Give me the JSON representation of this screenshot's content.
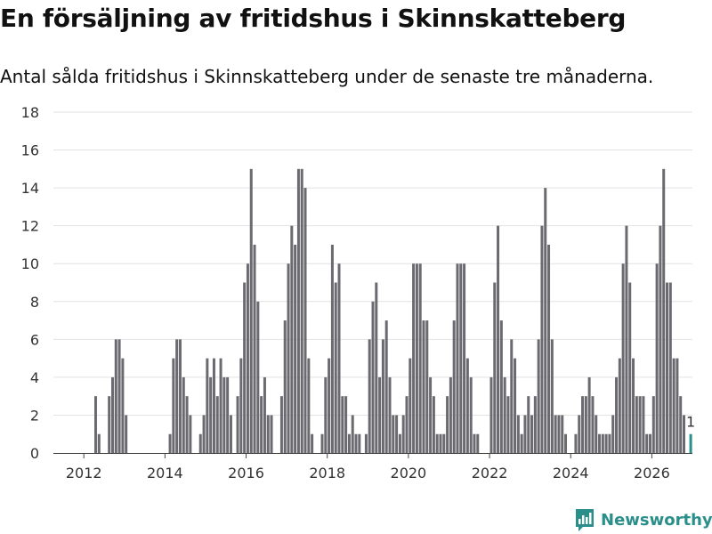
{
  "title": "En försäljning av fritidshus i Skinnskatteberg",
  "subtitle": "Antal sålda fritidshus i Skinnskatteberg under de senaste tre månaderna.",
  "brand": {
    "name": "Newsworthy",
    "icon": "newsworthy-logo-icon",
    "color": "#2a8f8a"
  },
  "chart_data": {
    "type": "bar",
    "title": "En försäljning av fritidshus i Skinnskatteberg",
    "xlabel": "",
    "ylabel": "",
    "ylim": [
      0,
      18
    ],
    "yticks": [
      0,
      2,
      4,
      6,
      8,
      10,
      12,
      14,
      16,
      18
    ],
    "xlim": [
      2011.25,
      2027.0
    ],
    "xticks": [
      2012,
      2014,
      2016,
      2018,
      2020,
      2022,
      2024,
      2026
    ],
    "x_tick_labels": [
      "2012",
      "2014",
      "2016",
      "2018",
      "2020",
      "2022",
      "2024",
      "2026"
    ],
    "grid": true,
    "bar_color": "#6b6a70",
    "highlight_color": "#2a8f8a",
    "start": {
      "year": 2011,
      "month": 1
    },
    "values": [
      0,
      0,
      0,
      0,
      0,
      0,
      0,
      0,
      0,
      0,
      0,
      0,
      0,
      0,
      0,
      3,
      1,
      0,
      0,
      3,
      4,
      6,
      6,
      5,
      2,
      0,
      0,
      0,
      0,
      0,
      0,
      0,
      0,
      0,
      0,
      0,
      0,
      1,
      5,
      6,
      6,
      4,
      3,
      2,
      0,
      0,
      1,
      2,
      5,
      4,
      5,
      3,
      5,
      4,
      4,
      2,
      0,
      3,
      5,
      9,
      10,
      15,
      11,
      8,
      3,
      4,
      2,
      2,
      0,
      0,
      3,
      7,
      10,
      12,
      11,
      15,
      15,
      14,
      5,
      1,
      0,
      0,
      1,
      4,
      5,
      11,
      9,
      10,
      3,
      3,
      1,
      2,
      1,
      1,
      0,
      1,
      6,
      8,
      9,
      4,
      6,
      7,
      4,
      2,
      2,
      1,
      2,
      3,
      5,
      10,
      10,
      10,
      7,
      7,
      4,
      3,
      1,
      1,
      1,
      3,
      4,
      7,
      10,
      10,
      10,
      5,
      4,
      1,
      1,
      0,
      0,
      0,
      4,
      9,
      12,
      7,
      4,
      3,
      6,
      5,
      2,
      1,
      2,
      3,
      2,
      3,
      6,
      12,
      14,
      11,
      6,
      2,
      2,
      2,
      1,
      0,
      0,
      1,
      2,
      3,
      3,
      4,
      3,
      2,
      1,
      1,
      1,
      1,
      2,
      4,
      5,
      10,
      12,
      9,
      5,
      3,
      3,
      3,
      1,
      1,
      3,
      10,
      12,
      15,
      9,
      9,
      5,
      5,
      3,
      2,
      0,
      1
    ],
    "highlight": {
      "label": "1",
      "value": 1,
      "index": 191
    }
  }
}
